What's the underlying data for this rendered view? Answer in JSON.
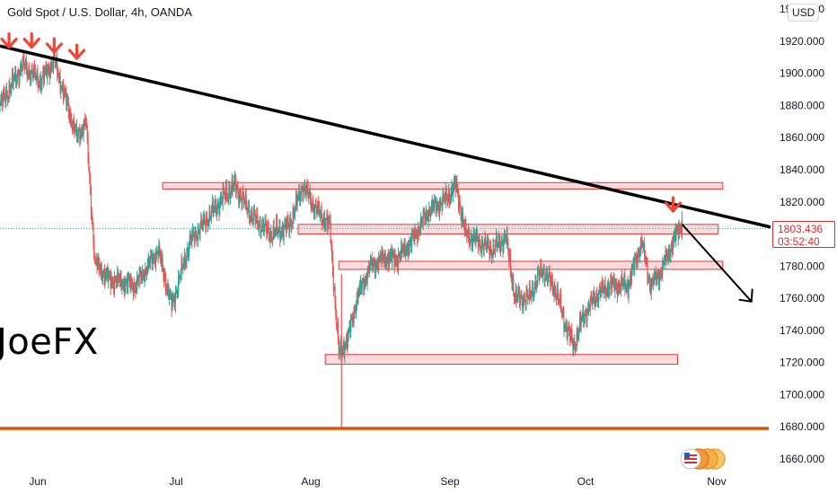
{
  "header": {
    "title": "Gold Spot / U.S. Dollar, 4h, OANDA",
    "currency": "USD",
    "watermark": "JoeFX"
  },
  "price_tag": {
    "price": "1803.436",
    "countdown": "03:52:40"
  },
  "colors": {
    "up": "#26a69a",
    "down": "#ef5350",
    "trendline": "#000000",
    "support": "#e65100",
    "zone_fill": "#ffcdd2",
    "zone_border": "#e53935",
    "arrow": "#f44336",
    "price_line": "#26a69a"
  },
  "icons": [
    "arrow-down-icon",
    "flag-icon"
  ],
  "chart_data": {
    "type": "line",
    "title": "Gold Spot / U.S. Dollar, 4h, OANDA",
    "y_ticks": [
      "1660.000",
      "1680.000",
      "1700.000",
      "1720.000",
      "1740.000",
      "1760.000",
      "1780.000",
      "1800.000",
      "1820.000",
      "1840.000",
      "1860.000",
      "1880.000",
      "1900.000",
      "1920.000",
      "1940.000"
    ],
    "x_ticks": [
      "Jun",
      "Jul",
      "Aug",
      "Sep",
      "Oct",
      "Nov"
    ],
    "ylim": [
      1658,
      1945
    ],
    "price_series": [
      {
        "d": 0,
        "p": 1880
      },
      {
        "d": 5,
        "p": 1905
      },
      {
        "d": 9,
        "p": 1895
      },
      {
        "d": 12,
        "p": 1908
      },
      {
        "d": 17,
        "p": 1860
      },
      {
        "d": 19,
        "p": 1870
      },
      {
        "d": 21,
        "p": 1782
      },
      {
        "d": 24,
        "p": 1772
      },
      {
        "d": 30,
        "p": 1768
      },
      {
        "d": 35,
        "p": 1790
      },
      {
        "d": 38,
        "p": 1755
      },
      {
        "d": 42,
        "p": 1795
      },
      {
        "d": 46,
        "p": 1810
      },
      {
        "d": 50,
        "p": 1825
      },
      {
        "d": 52,
        "p": 1830
      },
      {
        "d": 56,
        "p": 1810
      },
      {
        "d": 60,
        "p": 1800
      },
      {
        "d": 64,
        "p": 1805
      },
      {
        "d": 67,
        "p": 1830
      },
      {
        "d": 70,
        "p": 1815
      },
      {
        "d": 73,
        "p": 1805
      },
      {
        "d": 74,
        "p": 1765
      },
      {
        "d": 75,
        "p": 1725
      },
      {
        "d": 77,
        "p": 1735
      },
      {
        "d": 79,
        "p": 1760
      },
      {
        "d": 82,
        "p": 1780
      },
      {
        "d": 85,
        "p": 1785
      },
      {
        "d": 88,
        "p": 1785
      },
      {
        "d": 91,
        "p": 1795
      },
      {
        "d": 95,
        "p": 1815
      },
      {
        "d": 98,
        "p": 1820
      },
      {
        "d": 101,
        "p": 1830
      },
      {
        "d": 103,
        "p": 1800
      },
      {
        "d": 106,
        "p": 1795
      },
      {
        "d": 109,
        "p": 1790
      },
      {
        "d": 112,
        "p": 1798
      },
      {
        "d": 114,
        "p": 1760
      },
      {
        "d": 117,
        "p": 1760
      },
      {
        "d": 120,
        "p": 1778
      },
      {
        "d": 123,
        "p": 1765
      },
      {
        "d": 125,
        "p": 1745
      },
      {
        "d": 127,
        "p": 1730
      },
      {
        "d": 129,
        "p": 1748
      },
      {
        "d": 132,
        "p": 1762
      },
      {
        "d": 135,
        "p": 1768
      },
      {
        "d": 139,
        "p": 1768
      },
      {
        "d": 142,
        "p": 1795
      },
      {
        "d": 144,
        "p": 1768
      },
      {
        "d": 146,
        "p": 1775
      },
      {
        "d": 149,
        "p": 1795
      },
      {
        "d": 151,
        "p": 1808
      }
    ],
    "annotations": {
      "trendline": [
        {
          "d": 0,
          "p": 1917
        },
        {
          "d": 164,
          "p": 1795
        }
      ],
      "support_line": 1679,
      "zones": [
        {
          "d0": 36,
          "d1": 160,
          "low": 1828,
          "high": 1832
        },
        {
          "d0": 66,
          "d1": 159,
          "low": 1800,
          "high": 1806
        },
        {
          "d0": 75,
          "d1": 160,
          "low": 1778,
          "high": 1783
        },
        {
          "d0": 72,
          "d1": 150,
          "low": 1719,
          "high": 1725
        }
      ],
      "projection": [
        {
          "d": 151,
          "p": 1806
        },
        {
          "d": 158,
          "p": 1758
        }
      ],
      "resistance_arrows": [
        {
          "d": 2,
          "p": 1914
        },
        {
          "d": 7,
          "p": 1914
        },
        {
          "d": 12,
          "p": 1911
        },
        {
          "d": 17,
          "p": 1907
        },
        {
          "d": 149,
          "p": 1812
        }
      ]
    }
  }
}
